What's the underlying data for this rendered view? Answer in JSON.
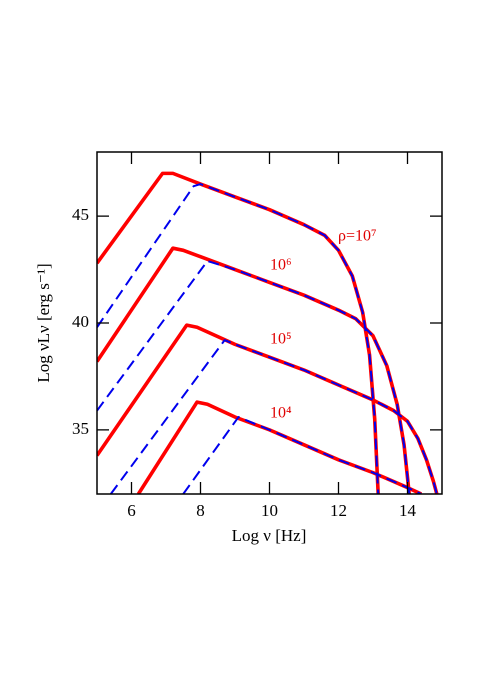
{
  "chart_data": {
    "type": "line",
    "x_label": "Log ν [Hz]",
    "y_label": "Log νLν [erg s⁻¹]",
    "xlim": [
      5,
      15
    ],
    "xticks": [
      6,
      8,
      10,
      12,
      14
    ],
    "ylim": [
      32,
      48
    ],
    "yticks": [
      35,
      40,
      45
    ],
    "annotations": [
      "ρ=10⁷",
      "10⁶",
      "10⁵",
      "10⁴"
    ],
    "series": [
      {
        "color": "#ff0000",
        "dash": false,
        "x": [
          5,
          6.9,
          7.2,
          8,
          9,
          10,
          11,
          11.6,
          12,
          12.4,
          12.7,
          12.9,
          13.05,
          13.15
        ],
        "values": [
          42.8,
          47.0,
          47.0,
          46.5,
          45.9,
          45.3,
          44.6,
          44.1,
          43.4,
          42.2,
          40.5,
          38.5,
          35.5,
          32
        ]
      },
      {
        "color": "#ff0000",
        "dash": false,
        "x": [
          5,
          7.2,
          7.5,
          8,
          9,
          10,
          11,
          12,
          12.5,
          13,
          13.4,
          13.7,
          13.9,
          14.05
        ],
        "values": [
          38.2,
          43.5,
          43.4,
          43.1,
          42.5,
          41.9,
          41.3,
          40.6,
          40.2,
          39.4,
          38.0,
          36.2,
          34.3,
          32
        ]
      },
      {
        "color": "#ff0000",
        "dash": false,
        "x": [
          5,
          7.6,
          7.9,
          9,
          10,
          11,
          12,
          13,
          13.6,
          14,
          14.3,
          14.55,
          14.75,
          14.85
        ],
        "values": [
          33.8,
          39.9,
          39.8,
          39.0,
          38.4,
          37.8,
          37.1,
          36.4,
          35.9,
          35.4,
          34.6,
          33.6,
          32.6,
          32
        ]
      },
      {
        "color": "#ff0000",
        "dash": false,
        "x": [
          6.2,
          7.9,
          8.2,
          9,
          10,
          11,
          12,
          13,
          14,
          14.4
        ],
        "values": [
          32,
          36.3,
          36.2,
          35.6,
          35.0,
          34.3,
          33.6,
          33.0,
          32.3,
          32.0
        ]
      },
      {
        "color": "#0000ee",
        "dash": true,
        "x": [
          5,
          7.8,
          8,
          9,
          10,
          11,
          11.6,
          12,
          12.4,
          12.7,
          12.9,
          13.05,
          13.15
        ],
        "values": [
          39.8,
          46.4,
          46.5,
          45.9,
          45.3,
          44.6,
          44.1,
          43.4,
          42.2,
          40.5,
          38.5,
          35.5,
          32
        ]
      },
      {
        "color": "#0000ee",
        "dash": true,
        "x": [
          5,
          8.2,
          9,
          10,
          11,
          12,
          12.5,
          13,
          13.4,
          13.7,
          13.9,
          14.05
        ],
        "values": [
          35.9,
          42.9,
          42.5,
          41.9,
          41.3,
          40.6,
          40.2,
          39.4,
          38.0,
          36.2,
          34.3,
          32
        ]
      },
      {
        "color": "#0000ee",
        "dash": true,
        "x": [
          5.4,
          8.7,
          9,
          10,
          11,
          12,
          13,
          13.6,
          14,
          14.3,
          14.55,
          14.75,
          14.85
        ],
        "values": [
          32,
          39.2,
          39.0,
          38.4,
          37.8,
          37.1,
          36.4,
          35.9,
          35.4,
          34.6,
          33.6,
          32.6,
          32
        ]
      },
      {
        "color": "#0000ee",
        "dash": true,
        "x": [
          7.5,
          9.1,
          10,
          11,
          12,
          13,
          14,
          14.4
        ],
        "values": [
          32,
          35.6,
          35.0,
          34.3,
          33.6,
          33.0,
          32.3,
          32.0
        ]
      }
    ]
  }
}
